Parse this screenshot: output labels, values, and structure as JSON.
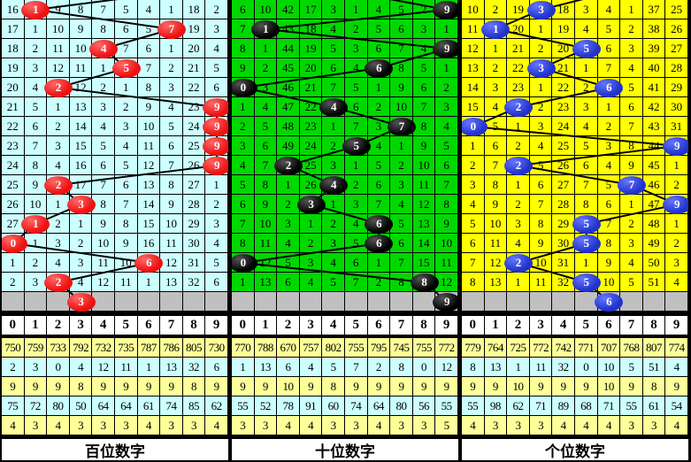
{
  "chart_data": [
    {
      "type": "table",
      "title": "百位数字",
      "panel_bg": "#CCFFFF",
      "ball_color": "#EE1111",
      "ball_highlight": "#FF6A6A",
      "digit_header": [
        "0",
        "1",
        "2",
        "3",
        "4",
        "5",
        "6",
        "7",
        "8",
        "9"
      ],
      "rows": [
        {
          "cells": [
            "16",
            "1",
            "9",
            "8",
            "7",
            "5",
            "4",
            "1",
            "18",
            "2"
          ],
          "drawn": 1
        },
        {
          "cells": [
            "17",
            "1",
            "10",
            "9",
            "8",
            "6",
            "5",
            "7",
            "19",
            "3"
          ],
          "drawn": 7
        },
        {
          "cells": [
            "18",
            "2",
            "11",
            "10",
            "4",
            "7",
            "6",
            "1",
            "20",
            "4"
          ],
          "drawn": 4
        },
        {
          "cells": [
            "19",
            "3",
            "12",
            "11",
            "1",
            "5",
            "7",
            "2",
            "21",
            "5"
          ],
          "drawn": 5
        },
        {
          "cells": [
            "20",
            "4",
            "2",
            "12",
            "2",
            "1",
            "8",
            "3",
            "22",
            "6"
          ],
          "drawn": 2
        },
        {
          "cells": [
            "21",
            "5",
            "1",
            "13",
            "3",
            "2",
            "9",
            "4",
            "23",
            "9"
          ],
          "drawn": 9
        },
        {
          "cells": [
            "22",
            "6",
            "2",
            "14",
            "4",
            "3",
            "10",
            "5",
            "24",
            "9"
          ],
          "drawn": 9
        },
        {
          "cells": [
            "23",
            "7",
            "3",
            "15",
            "5",
            "4",
            "11",
            "6",
            "25",
            "9"
          ],
          "drawn": 9
        },
        {
          "cells": [
            "24",
            "8",
            "4",
            "16",
            "6",
            "5",
            "12",
            "7",
            "26",
            "9"
          ],
          "drawn": 9
        },
        {
          "cells": [
            "25",
            "9",
            "2",
            "17",
            "7",
            "6",
            "13",
            "8",
            "27",
            "1"
          ],
          "drawn": 2
        },
        {
          "cells": [
            "26",
            "10",
            "1",
            "3",
            "8",
            "7",
            "14",
            "9",
            "28",
            "2"
          ],
          "drawn": 3
        },
        {
          "cells": [
            "27",
            "1",
            "2",
            "1",
            "9",
            "8",
            "15",
            "10",
            "29",
            "3"
          ],
          "drawn": 1
        },
        {
          "cells": [
            "0",
            "1",
            "3",
            "2",
            "10",
            "9",
            "16",
            "11",
            "30",
            "4"
          ],
          "drawn": 0
        },
        {
          "cells": [
            "1",
            "2",
            "4",
            "3",
            "11",
            "10",
            "6",
            "12",
            "31",
            "5"
          ],
          "drawn": 6
        },
        {
          "cells": [
            "2",
            "3",
            "2",
            "4",
            "12",
            "11",
            "1",
            "13",
            "32",
            "6"
          ],
          "drawn": 2
        }
      ],
      "drawn_sequence": [
        1,
        7,
        4,
        5,
        2,
        9,
        9,
        9,
        9,
        2,
        3,
        1,
        0,
        6,
        2
      ],
      "next_drawn": 3,
      "stats": [
        [
          "750",
          "759",
          "733",
          "792",
          "732",
          "735",
          "787",
          "786",
          "805",
          "730"
        ],
        [
          "2",
          "3",
          "0",
          "4",
          "12",
          "11",
          "1",
          "13",
          "32",
          "6"
        ],
        [
          "9",
          "9",
          "9",
          "8",
          "9",
          "9",
          "9",
          "9",
          "8",
          "9"
        ],
        [
          "75",
          "72",
          "80",
          "50",
          "64",
          "64",
          "61",
          "74",
          "85",
          "62"
        ],
        [
          "4",
          "3",
          "4",
          "3",
          "3",
          "3",
          "4",
          "3",
          "3",
          "4"
        ]
      ]
    },
    {
      "type": "table",
      "title": "十位数字",
      "panel_bg": "#00D800",
      "ball_color": "#000000",
      "ball_highlight": "#555555",
      "digit_header": [
        "0",
        "1",
        "2",
        "3",
        "4",
        "5",
        "6",
        "7",
        "8",
        "9"
      ],
      "rows": [
        {
          "cells": [
            "6",
            "10",
            "42",
            "17",
            "3",
            "1",
            "4",
            "5",
            "2",
            "9"
          ],
          "drawn": 9
        },
        {
          "cells": [
            "7",
            "1",
            "43",
            "18",
            "4",
            "2",
            "5",
            "6",
            "3",
            "1"
          ],
          "drawn": 1
        },
        {
          "cells": [
            "8",
            "1",
            "44",
            "19",
            "5",
            "3",
            "6",
            "7",
            "4",
            "9"
          ],
          "drawn": 9
        },
        {
          "cells": [
            "9",
            "2",
            "45",
            "20",
            "6",
            "4",
            "6",
            "8",
            "5",
            "1"
          ],
          "drawn": 6
        },
        {
          "cells": [
            "0",
            "3",
            "46",
            "21",
            "7",
            "5",
            "1",
            "9",
            "6",
            "2"
          ],
          "drawn": 0
        },
        {
          "cells": [
            "1",
            "4",
            "47",
            "22",
            "4",
            "6",
            "2",
            "10",
            "7",
            "3"
          ],
          "drawn": 4
        },
        {
          "cells": [
            "2",
            "5",
            "48",
            "23",
            "1",
            "7",
            "3",
            "7",
            "8",
            "4"
          ],
          "drawn": 7
        },
        {
          "cells": [
            "3",
            "6",
            "49",
            "24",
            "2",
            "5",
            "4",
            "1",
            "9",
            "5"
          ],
          "drawn": 5
        },
        {
          "cells": [
            "4",
            "7",
            "2",
            "25",
            "3",
            "1",
            "5",
            "2",
            "10",
            "6"
          ],
          "drawn": 2
        },
        {
          "cells": [
            "5",
            "8",
            "1",
            "26",
            "4",
            "2",
            "6",
            "3",
            "11",
            "7"
          ],
          "drawn": 4
        },
        {
          "cells": [
            "6",
            "9",
            "2",
            "3",
            "1",
            "3",
            "7",
            "4",
            "12",
            "8"
          ],
          "drawn": 3
        },
        {
          "cells": [
            "7",
            "10",
            "3",
            "1",
            "2",
            "4",
            "6",
            "5",
            "13",
            "9"
          ],
          "drawn": 6
        },
        {
          "cells": [
            "8",
            "11",
            "4",
            "2",
            "3",
            "5",
            "6",
            "6",
            "14",
            "10"
          ],
          "drawn": 6
        },
        {
          "cells": [
            "0",
            "12",
            "5",
            "3",
            "4",
            "6",
            "1",
            "7",
            "15",
            "11"
          ],
          "drawn": 0
        },
        {
          "cells": [
            "1",
            "13",
            "6",
            "4",
            "5",
            "7",
            "2",
            "8",
            "8",
            "12"
          ],
          "drawn": 8
        }
      ],
      "drawn_sequence": [
        9,
        1,
        9,
        6,
        0,
        4,
        7,
        5,
        2,
        4,
        3,
        6,
        6,
        0,
        8
      ],
      "next_drawn": 9,
      "stats": [
        [
          "770",
          "788",
          "670",
          "757",
          "802",
          "755",
          "795",
          "745",
          "755",
          "772"
        ],
        [
          "1",
          "13",
          "6",
          "4",
          "5",
          "7",
          "2",
          "8",
          "0",
          "12"
        ],
        [
          "9",
          "9",
          "10",
          "9",
          "8",
          "9",
          "9",
          "9",
          "9",
          "9"
        ],
        [
          "55",
          "52",
          "78",
          "91",
          "60",
          "74",
          "64",
          "80",
          "56",
          "55"
        ],
        [
          "3",
          "3",
          "4",
          "4",
          "3",
          "3",
          "4",
          "3",
          "3",
          "5"
        ]
      ]
    },
    {
      "type": "table",
      "title": "个位数字",
      "panel_bg": "#FFFF00",
      "ball_color": "#2233CC",
      "ball_highlight": "#6677FF",
      "digit_header": [
        "0",
        "1",
        "2",
        "3",
        "4",
        "5",
        "6",
        "7",
        "8",
        "9"
      ],
      "rows": [
        {
          "cells": [
            "10",
            "2",
            "19",
            "3",
            "18",
            "3",
            "4",
            "1",
            "37",
            "25"
          ],
          "drawn": 3
        },
        {
          "cells": [
            "11",
            "1",
            "20",
            "1",
            "19",
            "4",
            "5",
            "2",
            "38",
            "26"
          ],
          "drawn": 1
        },
        {
          "cells": [
            "12",
            "1",
            "21",
            "2",
            "20",
            "5",
            "6",
            "3",
            "39",
            "27"
          ],
          "drawn": 5
        },
        {
          "cells": [
            "13",
            "2",
            "22",
            "3",
            "21",
            "1",
            "7",
            "4",
            "40",
            "28"
          ],
          "drawn": 3
        },
        {
          "cells": [
            "14",
            "3",
            "23",
            "1",
            "22",
            "2",
            "6",
            "5",
            "41",
            "29"
          ],
          "drawn": 6
        },
        {
          "cells": [
            "15",
            "4",
            "2",
            "2",
            "23",
            "3",
            "1",
            "6",
            "42",
            "30"
          ],
          "drawn": 2
        },
        {
          "cells": [
            "0",
            "5",
            "1",
            "3",
            "24",
            "4",
            "2",
            "7",
            "43",
            "31"
          ],
          "drawn": 0
        },
        {
          "cells": [
            "1",
            "6",
            "2",
            "4",
            "25",
            "5",
            "3",
            "8",
            "44",
            "9"
          ],
          "drawn": 9
        },
        {
          "cells": [
            "2",
            "7",
            "2",
            "5",
            "26",
            "6",
            "4",
            "9",
            "45",
            "1"
          ],
          "drawn": 2
        },
        {
          "cells": [
            "3",
            "8",
            "1",
            "6",
            "27",
            "7",
            "5",
            "7",
            "46",
            "2"
          ],
          "drawn": 7
        },
        {
          "cells": [
            "4",
            "9",
            "2",
            "7",
            "28",
            "8",
            "6",
            "1",
            "47",
            "9"
          ],
          "drawn": 9
        },
        {
          "cells": [
            "5",
            "10",
            "3",
            "8",
            "29",
            "5",
            "7",
            "2",
            "48",
            "1"
          ],
          "drawn": 5
        },
        {
          "cells": [
            "6",
            "11",
            "4",
            "9",
            "30",
            "5",
            "8",
            "3",
            "49",
            "2"
          ],
          "drawn": 5
        },
        {
          "cells": [
            "7",
            "12",
            "2",
            "10",
            "31",
            "1",
            "9",
            "4",
            "50",
            "3"
          ],
          "drawn": 2
        },
        {
          "cells": [
            "8",
            "13",
            "1",
            "11",
            "32",
            "5",
            "10",
            "5",
            "51",
            "4"
          ],
          "drawn": 5
        }
      ],
      "drawn_sequence": [
        3,
        1,
        5,
        3,
        6,
        2,
        0,
        9,
        2,
        7,
        9,
        5,
        5,
        2,
        5
      ],
      "next_drawn": 6,
      "stats": [
        [
          "779",
          "764",
          "725",
          "772",
          "742",
          "771",
          "707",
          "768",
          "807",
          "774"
        ],
        [
          "8",
          "13",
          "1",
          "11",
          "32",
          "0",
          "10",
          "5",
          "51",
          "4"
        ],
        [
          "9",
          "9",
          "10",
          "9",
          "9",
          "9",
          "10",
          "9",
          "8",
          "9"
        ],
        [
          "55",
          "98",
          "62",
          "71",
          "89",
          "68",
          "71",
          "55",
          "61",
          "54"
        ],
        [
          "4",
          "3",
          "3",
          "3",
          "4",
          "4",
          "4",
          "3",
          "3",
          "4"
        ]
      ]
    }
  ],
  "colors": {
    "grid_line": "#000000",
    "forecast_band": "#C0C0C0",
    "header_bg": "#FFFFFF",
    "stats_row_bg": [
      "#FFFF99",
      "#CCFFFF",
      "#FFFF99",
      "#CCFFFF",
      "#FFFF99"
    ],
    "line_color": "#000000",
    "ball_text": "#FFFFFF"
  }
}
